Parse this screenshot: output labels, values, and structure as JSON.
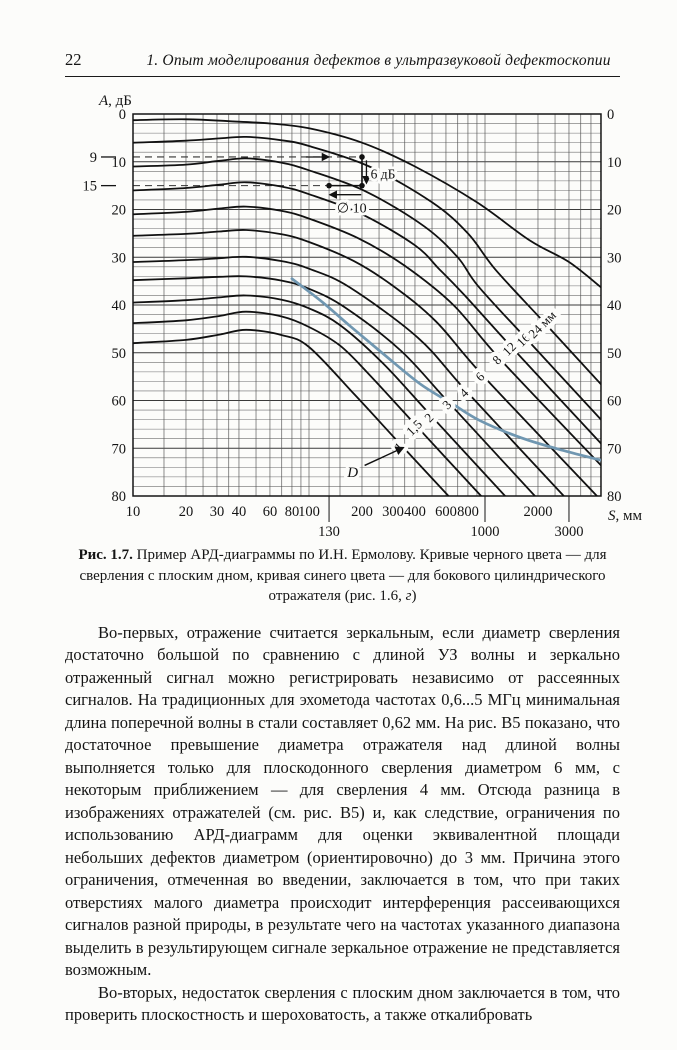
{
  "header": {
    "page_number": "22",
    "running_title": "1. Опыт моделирования дефектов в ультразвуковой дефектоскопии"
  },
  "figure": {
    "caption_lead": "Рис. 1.7.",
    "caption_body": "Пример АРД-диаграммы по И.Н. Ермолову. Кривые черного цвета — для сверления с плоским дном, кривая синего цвета — для бокового цилиндрического отражателя (рис. 1.6, ",
    "caption_letter": "г",
    "caption_close": ")"
  },
  "body": {
    "paragraphs": [
      "Во-первых, отражение считается зеркальным, если диаметр сверления достаточно большой по сравнению с длиной УЗ волны и зеркально отраженный сигнал можно регистрировать независимо от рассеянных сигналов. На традиционных для эхометода частотах 0,6...5 МГц минимальная длина поперечной волны в стали составляет 0,62 мм. На рис. В5 показано, что достаточное превышение диаметра отражателя над длиной волны выполняется только для плоскодонного сверления диаметром 6 мм, с некоторым приближением — для сверления 4 мм. Отсюда разница в изображениях отражателей (см. рис. В5) и, как следствие, ограничения по использованию АРД-диаграмм для оценки эквивалентной площади небольших дефектов диаметром (ориентировочно) до 3 мм. Причина этого ограничения, отмеченная во введении, заключается в том, что при таких отверстиях малого диаметра происходит интерференция рассеивающихся сигналов разной природы, в результате чего на частотах указанного диапазона выделить в результирующем сигнале зеркальное отражение не представляется возможным.",
      "Во-вторых, недостаток сверления с плоским дном заключается в том, что проверить плоскостность и шероховатость, а также откалибровать"
    ]
  },
  "chart_data": {
    "type": "line",
    "xlabel": "S, мм",
    "ylabel": "A, дБ",
    "x_scale": "log",
    "xlim": [
      10,
      4560
    ],
    "ylim": [
      0,
      80
    ],
    "y_inverted": true,
    "grid": true,
    "y_grid_step": 2,
    "y_ticks": [
      0,
      10,
      20,
      30,
      40,
      50,
      60,
      70,
      80
    ],
    "y_special_left_labels": [
      9,
      15
    ],
    "x_ticks_row1": [
      10,
      20,
      30,
      40,
      60,
      80,
      100,
      200,
      300,
      400,
      600,
      800,
      2000
    ],
    "x_ticks_row2": [
      130,
      1000,
      3000
    ],
    "x_gridlines": [
      10,
      15,
      20,
      25,
      30,
      35,
      40,
      50,
      60,
      70,
      80,
      90,
      100,
      130,
      150,
      200,
      250,
      300,
      350,
      400,
      500,
      600,
      700,
      800,
      900,
      1000,
      1500,
      2000,
      2500,
      3000,
      3500,
      4000
    ],
    "black_color": "#111111",
    "blue_color": "#7097b1",
    "curves": [
      {
        "name": "top-unlabeled",
        "points": [
          [
            10,
            1.3
          ],
          [
            20,
            1.1
          ],
          [
            35,
            1.5
          ],
          [
            60,
            2.0
          ],
          [
            100,
            3.0
          ],
          [
            200,
            6.0
          ],
          [
            400,
            11.0
          ],
          [
            900,
            18.5
          ],
          [
            1800,
            26.5
          ],
          [
            3000,
            31.0
          ],
          [
            4560,
            36.3
          ]
        ]
      },
      {
        "name": "24 мм",
        "points": [
          [
            10,
            6.0
          ],
          [
            20,
            5.6
          ],
          [
            31,
            5.1
          ],
          [
            44,
            4.8
          ],
          [
            70,
            5.5
          ],
          [
            100,
            6.7
          ],
          [
            220,
            11.0
          ],
          [
            500,
            18.5
          ],
          [
            800,
            25.0
          ],
          [
            1148,
            32.6
          ],
          [
            2200,
            43.9
          ],
          [
            4560,
            56.6
          ]
        ]
      },
      {
        "name": "16 мм",
        "points": [
          [
            10,
            11.0
          ],
          [
            20,
            10.6
          ],
          [
            31,
            9.8
          ],
          [
            44,
            9.3
          ],
          [
            70,
            10.2
          ],
          [
            100,
            11.8
          ],
          [
            210,
            16.2
          ],
          [
            450,
            23.5
          ],
          [
            700,
            30.0
          ],
          [
            912,
            36.0
          ],
          [
            1720,
            47.1
          ],
          [
            4560,
            64.0
          ]
        ]
      },
      {
        "name": "12 мм",
        "points": [
          [
            10,
            16.0
          ],
          [
            20,
            15.5
          ],
          [
            31,
            14.8
          ],
          [
            44,
            14.3
          ],
          [
            70,
            15.2
          ],
          [
            100,
            16.8
          ],
          [
            200,
            21.0
          ],
          [
            400,
            27.5
          ],
          [
            550,
            32.5
          ],
          [
            759,
            37.8
          ],
          [
            1432,
            49.0
          ],
          [
            4560,
            69.0
          ]
        ]
      },
      {
        "name": "8 мм",
        "points": [
          [
            10,
            21.0
          ],
          [
            20,
            20.5
          ],
          [
            31,
            19.8
          ],
          [
            44,
            19.4
          ],
          [
            70,
            20.3
          ],
          [
            100,
            21.9
          ],
          [
            190,
            26.0
          ],
          [
            350,
            31.8
          ],
          [
            661,
            40.0
          ],
          [
            1216,
            51.3
          ],
          [
            4560,
            73.6
          ]
        ]
      },
      {
        "name": "6 мм",
        "points": [
          [
            10,
            25.5
          ],
          [
            20,
            25.1
          ],
          [
            31,
            24.6
          ],
          [
            44,
            24.3
          ],
          [
            70,
            25.2
          ],
          [
            100,
            26.8
          ],
          [
            180,
            30.8
          ],
          [
            300,
            36.0
          ],
          [
            525,
            43.4
          ],
          [
            974,
            54.8
          ],
          [
            4325,
            80
          ]
        ]
      },
      {
        "name": "4 мм",
        "points": [
          [
            10,
            31.0
          ],
          [
            20,
            30.6
          ],
          [
            31,
            30.2
          ],
          [
            44,
            29.9
          ],
          [
            70,
            30.8
          ],
          [
            100,
            32.4
          ],
          [
            170,
            36.3
          ],
          [
            417,
            46.9
          ],
          [
            790,
            58.2
          ],
          [
            2805,
            80
          ]
        ]
      },
      {
        "name": "3 мм",
        "points": [
          [
            10,
            34.8
          ],
          [
            20,
            34.4
          ],
          [
            31,
            34.1
          ],
          [
            44,
            34.0
          ],
          [
            70,
            34.9
          ],
          [
            100,
            36.6
          ],
          [
            160,
            40.5
          ],
          [
            331,
            49.5
          ],
          [
            632,
            60.7
          ],
          [
            1920,
            80
          ]
        ]
      },
      {
        "name": "2 мм",
        "points": [
          [
            10,
            39.5
          ],
          [
            20,
            39.0
          ],
          [
            31,
            38.4
          ],
          [
            44,
            38.0
          ],
          [
            70,
            38.9
          ],
          [
            100,
            40.7
          ],
          [
            150,
            44.2
          ],
          [
            263,
            52.2
          ],
          [
            500,
            63.4
          ],
          [
            1300,
            80
          ]
        ]
      },
      {
        "name": "1,5 мм",
        "points": [
          [
            10,
            43.8
          ],
          [
            20,
            43.2
          ],
          [
            31,
            42.3
          ],
          [
            44,
            41.4
          ],
          [
            70,
            42.4
          ],
          [
            100,
            44.6
          ],
          [
            150,
            48.5
          ],
          [
            219,
            54.5
          ],
          [
            412,
            65.5
          ],
          [
            950,
            80
          ]
        ]
      },
      {
        "name": "1 мм",
        "points": [
          [
            10,
            48.0
          ],
          [
            20,
            47.3
          ],
          [
            31,
            46.2
          ],
          [
            44,
            45.2
          ],
          [
            70,
            46.3
          ],
          [
            100,
            48.8
          ],
          [
            182,
            58.8
          ],
          [
            337,
            69.5
          ],
          [
            620,
            80
          ]
        ]
      }
    ],
    "blue_curve": {
      "name": "боковой цилиндрический отражатель",
      "points": [
        [
          80,
          34.5
        ],
        [
          120,
          39.5
        ],
        [
          171,
          44.4
        ],
        [
          260,
          50.0
        ],
        [
          427,
          56.5
        ],
        [
          640,
          60.5
        ],
        [
          935,
          64.2
        ],
        [
          1600,
          67.8
        ],
        [
          2800,
          70.5
        ],
        [
          4560,
          72.5
        ]
      ]
    },
    "curve_labels": [
      {
        "text": "1",
        "s": 337,
        "a": 69.5
      },
      {
        "text": "1,5",
        "s": 412,
        "a": 65.5
      },
      {
        "text": "2",
        "s": 500,
        "a": 63.4
      },
      {
        "text": "3",
        "s": 632,
        "a": 60.7
      },
      {
        "text": "4",
        "s": 790,
        "a": 58.2
      },
      {
        "text": "6",
        "s": 974,
        "a": 54.8
      },
      {
        "text": "8",
        "s": 1216,
        "a": 51.3
      },
      {
        "text": "12",
        "s": 1432,
        "a": 49.0
      },
      {
        "text": "16",
        "s": 1720,
        "a": 47.1
      },
      {
        "text": "24 мм",
        "s": 2200,
        "a": 43.9
      }
    ],
    "annotations": {
      "dashed_levels": [
        9,
        15
      ],
      "dash_end_s": 200,
      "ref_column": {
        "s": 200,
        "a_from": 9,
        "a_to": 15
      },
      "dots": [
        [
          200,
          9
        ],
        [
          200,
          15
        ],
        [
          130,
          15
        ]
      ],
      "six_db": {
        "label": "6 дБ",
        "arrow_s": 212,
        "a_from": 9.7,
        "a_to": 14.4,
        "label_s": 224,
        "label_a": 12.7
      },
      "dia_seg": {
        "a": 15,
        "s_from": 130,
        "s_to": 200
      },
      "left_arrow": {
        "a": 16.9,
        "s_from": 198,
        "s_to": 132
      },
      "right_arrow": {
        "a": 9,
        "s_from": 96,
        "s_to": 129
      },
      "dia_label": {
        "text": "∅ 10",
        "s": 175,
        "a": 19.8
      },
      "d_pointer": {
        "text": "D",
        "s": 190,
        "a": 75.2,
        "arrow_from": [
          207,
          73.6
        ],
        "arrow_to": [
          342,
          69.9
        ]
      }
    }
  }
}
